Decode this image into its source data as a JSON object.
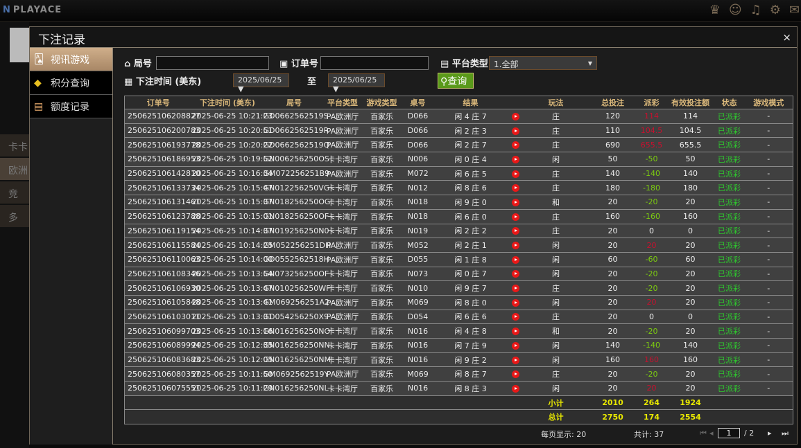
{
  "app": {
    "logo": "PLAYACE",
    "icons": [
      "vip-icon",
      "chat-support-icon",
      "music-icon",
      "gear-icon",
      "message-icon"
    ]
  },
  "background": {
    "items": [
      "卡卡",
      "欧洲",
      "竞",
      "多"
    ]
  },
  "modal": {
    "title": "下注记录",
    "close": "×"
  },
  "sidebar": {
    "items": [
      {
        "label": "视讯游戏",
        "icon": "cards-icon",
        "active": true
      },
      {
        "label": "积分查询",
        "icon": "diamond-icon"
      },
      {
        "label": "额度记录",
        "icon": "document-icon"
      }
    ]
  },
  "filters": {
    "round_label": "局号",
    "round_value": "",
    "order_label": "订单号",
    "order_value": "",
    "platform_label": "平台类型",
    "platform_value": "1.全部",
    "time_label": "下注时间 (美东)",
    "date_from": "2025/06/25",
    "to_label": "至",
    "date_to": "2025/06/25",
    "query_button": "查询"
  },
  "table": {
    "headers": [
      "订单号",
      "下注时间 (美东)",
      "局号",
      "平台类型",
      "游戏类型",
      "桌号",
      "结果",
      "",
      "玩法",
      "总投注",
      "派彩",
      "有效投注额",
      "状态",
      "游戏模式"
    ],
    "rows": [
      [
        "250625106208827",
        "2025-06-25 10:21:23",
        "GD0662562519S",
        "PA欧洲厅",
        "百家乐",
        "D066",
        "闲 4 庄 7",
        "庄",
        "120",
        "114",
        "loss",
        "114",
        "已派彩",
        "-"
      ],
      [
        "250625106200783",
        "2025-06-25 10:20:51",
        "GD0662562519R",
        "PA欧洲厅",
        "百家乐",
        "D066",
        "闲 2 庄 3",
        "庄",
        "110",
        "104.5",
        "loss",
        "104.5",
        "已派彩",
        "-"
      ],
      [
        "250625106193778",
        "2025-06-25 10:20:22",
        "GD0662562519Q",
        "PA欧洲厅",
        "百家乐",
        "D066",
        "闲 2 庄 7",
        "庄",
        "690",
        "655.5",
        "loss",
        "655.5",
        "已派彩",
        "-"
      ],
      [
        "250625106186953",
        "2025-06-25 10:19:52",
        "GN006256250OS",
        "卡卡湾厅",
        "百家乐",
        "N006",
        "闲 0 庄 4",
        "闲",
        "50",
        "-50",
        "win",
        "50",
        "已派彩",
        "-"
      ],
      [
        "250625106142810",
        "2025-06-25 10:16:34",
        "GM072256251B9",
        "PA欧洲厅",
        "百家乐",
        "M072",
        "闲 6 庄 5",
        "庄",
        "140",
        "-140",
        "win",
        "140",
        "已派彩",
        "-"
      ],
      [
        "250625106133734",
        "2025-06-25 10:15:47",
        "GN012256250VG",
        "卡卡湾厅",
        "百家乐",
        "N012",
        "闲 8 庄 6",
        "庄",
        "180",
        "-180",
        "win",
        "180",
        "已派彩",
        "-"
      ],
      [
        "250625106131461",
        "2025-06-25 10:15:37",
        "GN018256250OG",
        "卡卡湾厅",
        "百家乐",
        "N018",
        "闲 9 庄 0",
        "和",
        "20",
        "-20",
        "win",
        "20",
        "已派彩",
        "-"
      ],
      [
        "250625106123788",
        "2025-06-25 10:15:01",
        "GN018256250OF",
        "卡卡湾厅",
        "百家乐",
        "N018",
        "闲 6 庄 0",
        "庄",
        "160",
        "-160",
        "win",
        "160",
        "已派彩",
        "-"
      ],
      [
        "250625106119154",
        "2025-06-25 10:14:37",
        "GN019256250N0",
        "卡卡湾厅",
        "百家乐",
        "N019",
        "闲 2 庄 2",
        "庄",
        "20",
        "0",
        "",
        "0",
        "已派彩",
        "-"
      ],
      [
        "250625106115584",
        "2025-06-25 10:14:25",
        "GM052256251DH",
        "PA欧洲厅",
        "百家乐",
        "M052",
        "闲 2 庄 1",
        "闲",
        "20",
        "20",
        "loss",
        "20",
        "已派彩",
        "-"
      ],
      [
        "250625106110063",
        "2025-06-25 10:14:00",
        "GD0552562518H",
        "PA欧洲厅",
        "百家乐",
        "D055",
        "闲 1 庄 8",
        "闲",
        "60",
        "-60",
        "win",
        "60",
        "已派彩",
        "-"
      ],
      [
        "250625106108346",
        "2025-06-25 10:13:54",
        "GN073256250OF",
        "卡卡湾厅",
        "百家乐",
        "N073",
        "闲 0 庄 7",
        "闲",
        "20",
        "-20",
        "win",
        "20",
        "已派彩",
        "-"
      ],
      [
        "250625106106930",
        "2025-06-25 10:13:47",
        "GN010256250WF",
        "卡卡湾厅",
        "百家乐",
        "N010",
        "闲 9 庄 7",
        "庄",
        "20",
        "-20",
        "win",
        "20",
        "已派彩",
        "-"
      ],
      [
        "250625106105848",
        "2025-06-25 10:13:41",
        "GM069256251A2",
        "PA欧洲厅",
        "百家乐",
        "M069",
        "闲 8 庄 0",
        "闲",
        "20",
        "20",
        "loss",
        "20",
        "已派彩",
        "-"
      ],
      [
        "250625106103011",
        "2025-06-25 10:13:31",
        "GD054256250X9",
        "PA欧洲厅",
        "百家乐",
        "D054",
        "闲 6 庄 6",
        "庄",
        "20",
        "0",
        "",
        "0",
        "已派彩",
        "-"
      ],
      [
        "250625106099703",
        "2025-06-25 10:13:16",
        "GN016256250NO",
        "卡卡湾厅",
        "百家乐",
        "N016",
        "闲 4 庄 8",
        "和",
        "20",
        "-20",
        "win",
        "20",
        "已派彩",
        "-"
      ],
      [
        "250625106089994",
        "2025-06-25 10:12:35",
        "GN016256250NN",
        "卡卡湾厅",
        "百家乐",
        "N016",
        "闲 7 庄 9",
        "闲",
        "140",
        "-140",
        "win",
        "140",
        "已派彩",
        "-"
      ],
      [
        "250625106083683",
        "2025-06-25 10:12:05",
        "GN016256250NM",
        "卡卡湾厅",
        "百家乐",
        "N016",
        "闲 9 庄 2",
        "闲",
        "160",
        "160",
        "loss",
        "160",
        "已派彩",
        "-"
      ],
      [
        "250625106080357",
        "2025-06-25 10:11:50",
        "GM0692562519Y",
        "PA欧洲厅",
        "百家乐",
        "M069",
        "闲 8 庄 7",
        "庄",
        "20",
        "-20",
        "win",
        "20",
        "已派彩",
        "-"
      ],
      [
        "250625106075551",
        "2025-06-25 10:11:29",
        "GN016256250NL",
        "卡卡湾厅",
        "百家乐",
        "N016",
        "闲 8 庄 3",
        "闲",
        "20",
        "20",
        "loss",
        "20",
        "已派彩",
        "-"
      ]
    ],
    "subtotal": {
      "label": "小计",
      "total_bet": "2010",
      "payout": "264",
      "valid_bet": "1924"
    },
    "total": {
      "label": "总计",
      "total_bet": "2750",
      "payout": "174",
      "valid_bet": "2554"
    }
  },
  "pagination": {
    "per_page": "每页显示: 20",
    "total": "共计: 37",
    "current": "1",
    "pages": "/  2"
  },
  "colors": {
    "gold": "#d9b77a",
    "loss": "#c8102e",
    "win": "#7ccc10",
    "status": "#2ec82e",
    "query": "#5a9a1a"
  }
}
